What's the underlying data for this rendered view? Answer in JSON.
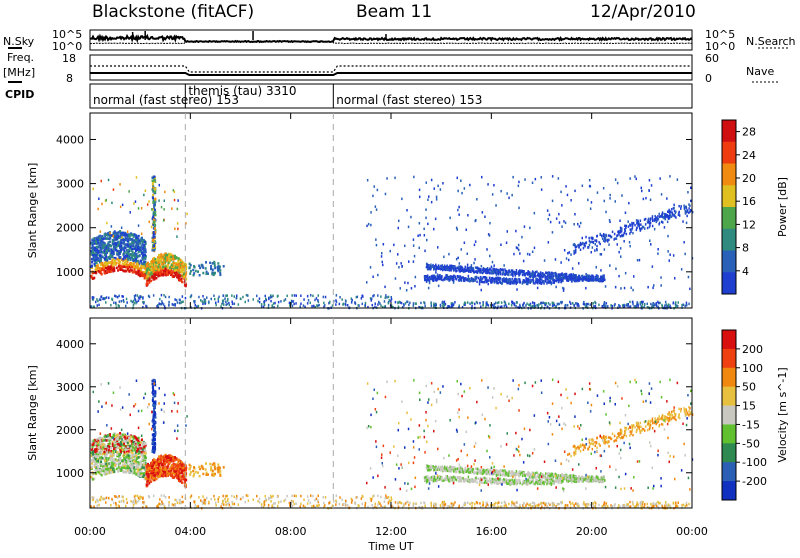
{
  "header": {
    "radar": "Blackstone (fitACF)",
    "beam": "Beam 11",
    "date": "12/Apr/2010"
  },
  "labels": {
    "nsky": "N.Sky",
    "freq": "Freq.",
    "freq_unit": "[MHz]",
    "cpid": "CPID",
    "nsearch": "N.Search",
    "nave": "Nave"
  },
  "scales": {
    "nsky_top": "10^5",
    "nsky_bottom": "10^0",
    "nsearch_top": "10^5",
    "nsearch_bottom": "10^0",
    "freq_top": "18",
    "freq_bottom": "8",
    "nave_top": "60",
    "nave_bottom": "0"
  },
  "cpid_modes": [
    {
      "label": "normal (fast stereo) 153",
      "start": 0.0,
      "end": 3.8
    },
    {
      "label": "themis (tau) 3310",
      "start": 3.8,
      "end": 9.7
    },
    {
      "label": "normal (fast stereo) 153",
      "start": 9.7,
      "end": 24.0
    }
  ],
  "colors": {
    "power": [
      "#1f3fd0",
      "#2a61b8",
      "#2f8a7f",
      "#4ea64a",
      "#e0c020",
      "#f08a10",
      "#ee3b10",
      "#d01010"
    ],
    "velocity": [
      "#1030c0",
      "#2a5fb5",
      "#2e8a50",
      "#60c030",
      "#c8c8c0",
      "#e8c040",
      "#f08810",
      "#ee4010",
      "#d81010"
    ]
  },
  "chart_data": [
    {
      "type": "heatmap",
      "title": "Power",
      "xlabel": "",
      "ylabel": "Slant Range [km]",
      "xlim": [
        0,
        24
      ],
      "ylim": [
        180,
        4600
      ],
      "xticks": [
        "00:00",
        "04:00",
        "08:00",
        "12:00",
        "16:00",
        "20:00",
        "00:00"
      ],
      "yticks": [
        1000,
        2000,
        3000,
        4000
      ],
      "colorbar": {
        "label": "Power [dB]",
        "ticks": [
          4,
          8,
          12,
          16,
          20,
          24,
          28
        ],
        "range": [
          0,
          30
        ]
      },
      "features": [
        {
          "x_start": 0.0,
          "x_end": 2.2,
          "range_km": [
            600,
            1800
          ],
          "level": "strong, 20-30 dB at lower edge"
        },
        {
          "x_start": 2.2,
          "x_end": 3.8,
          "range_km": [
            650,
            1400
          ],
          "level": "strong, 16-28 dB"
        },
        {
          "x_start": 3.8,
          "x_end": 5.3,
          "range_km": [
            950,
            1250
          ],
          "level": "weak, 4-8 dB"
        },
        {
          "x_start": 13.3,
          "x_end": 20.5,
          "range_km": [
            800,
            1600
          ],
          "level": "weak, 4-8 dB"
        },
        {
          "x_start": 22.3,
          "x_end": 24.0,
          "range_km": [
            2000,
            2600
          ],
          "level": "weak, 4-8 dB"
        }
      ]
    },
    {
      "type": "heatmap",
      "title": "Velocity",
      "xlabel": "Time UT",
      "ylabel": "Slant Range [km]",
      "xlim": [
        0,
        24
      ],
      "ylim": [
        180,
        4600
      ],
      "xticks": [
        "00:00",
        "04:00",
        "08:00",
        "12:00",
        "16:00",
        "20:00",
        "00:00"
      ],
      "yticks": [
        1000,
        2000,
        3000,
        4000
      ],
      "colorbar": {
        "label": "Velocity [m s^-1]",
        "ticks": [
          200,
          100,
          50,
          15,
          -15,
          -50,
          -100,
          -200
        ],
        "range": [
          -250,
          250
        ]
      },
      "features": [
        {
          "x_start": 0.0,
          "x_end": 2.2,
          "range_km": [
            700,
            1800
          ],
          "level": "mixed, -15 to 50 m/s with positive patches"
        },
        {
          "x_start": 2.3,
          "x_end": 3.8,
          "range_km": [
            800,
            1300
          ],
          "level": "-100 to -250 m/s"
        },
        {
          "x_start": 2.4,
          "x_end": 2.6,
          "range_km": [
            1700,
            3200
          ],
          "level": "100 to 250 m/s"
        },
        {
          "x_start": 13.3,
          "x_end": 20.5,
          "range_km": [
            800,
            1600
          ],
          "level": "-15 to 15 m/s"
        },
        {
          "x_start": 22.3,
          "x_end": 24.0,
          "range_km": [
            2000,
            2600
          ],
          "level": "-15 to -100 m/s"
        }
      ]
    }
  ]
}
